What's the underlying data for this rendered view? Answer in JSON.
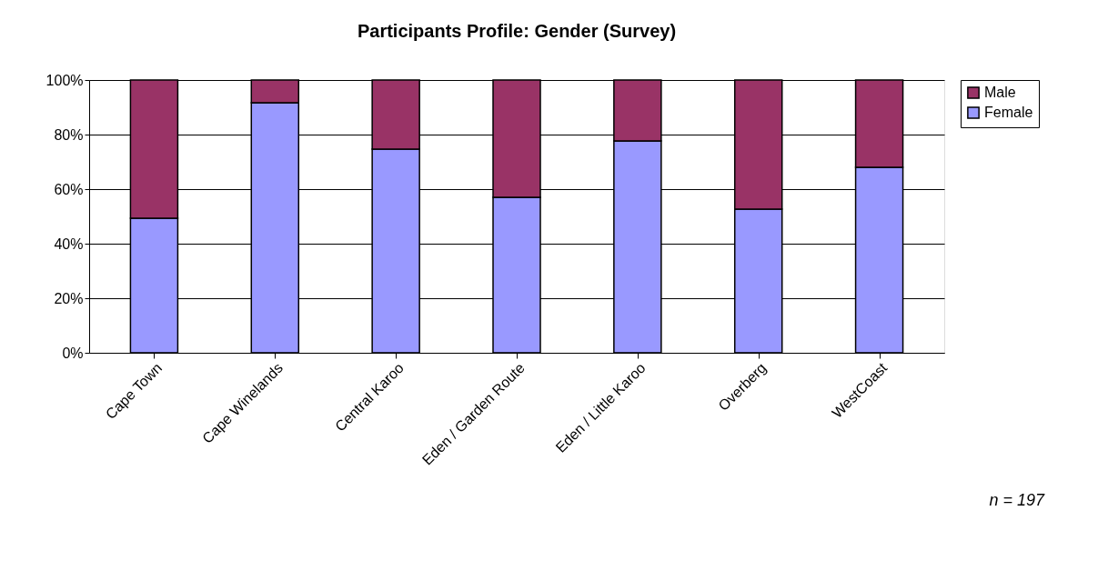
{
  "chart_data": {
    "type": "bar",
    "title": "Participants Profile: Gender (Survey)",
    "categories": [
      "Cape Town",
      "Cape Winelands",
      "Central Karoo",
      "Eden / Garden Route",
      "Eden / Little Karoo",
      "Overberg",
      "WestCoast"
    ],
    "series": [
      {
        "name": "Female",
        "color": "#9999ff",
        "values": [
          49.3,
          91.7,
          74.7,
          57.0,
          77.7,
          52.7,
          68.0
        ]
      },
      {
        "name": "Male",
        "color": "#993366",
        "values": [
          50.7,
          8.3,
          25.3,
          43.0,
          22.3,
          47.3,
          32.0
        ]
      }
    ],
    "stacked": true,
    "ylim": [
      0,
      100
    ],
    "yticks": [
      {
        "value": 0,
        "label": "0%"
      },
      {
        "value": 20,
        "label": "20%"
      },
      {
        "value": 40,
        "label": "40%"
      },
      {
        "value": 60,
        "label": "60%"
      },
      {
        "value": 80,
        "label": "80%"
      },
      {
        "value": 100,
        "label": "100%"
      }
    ],
    "grid": "y",
    "legend": "right",
    "annotations": [
      "n = 197"
    ]
  }
}
